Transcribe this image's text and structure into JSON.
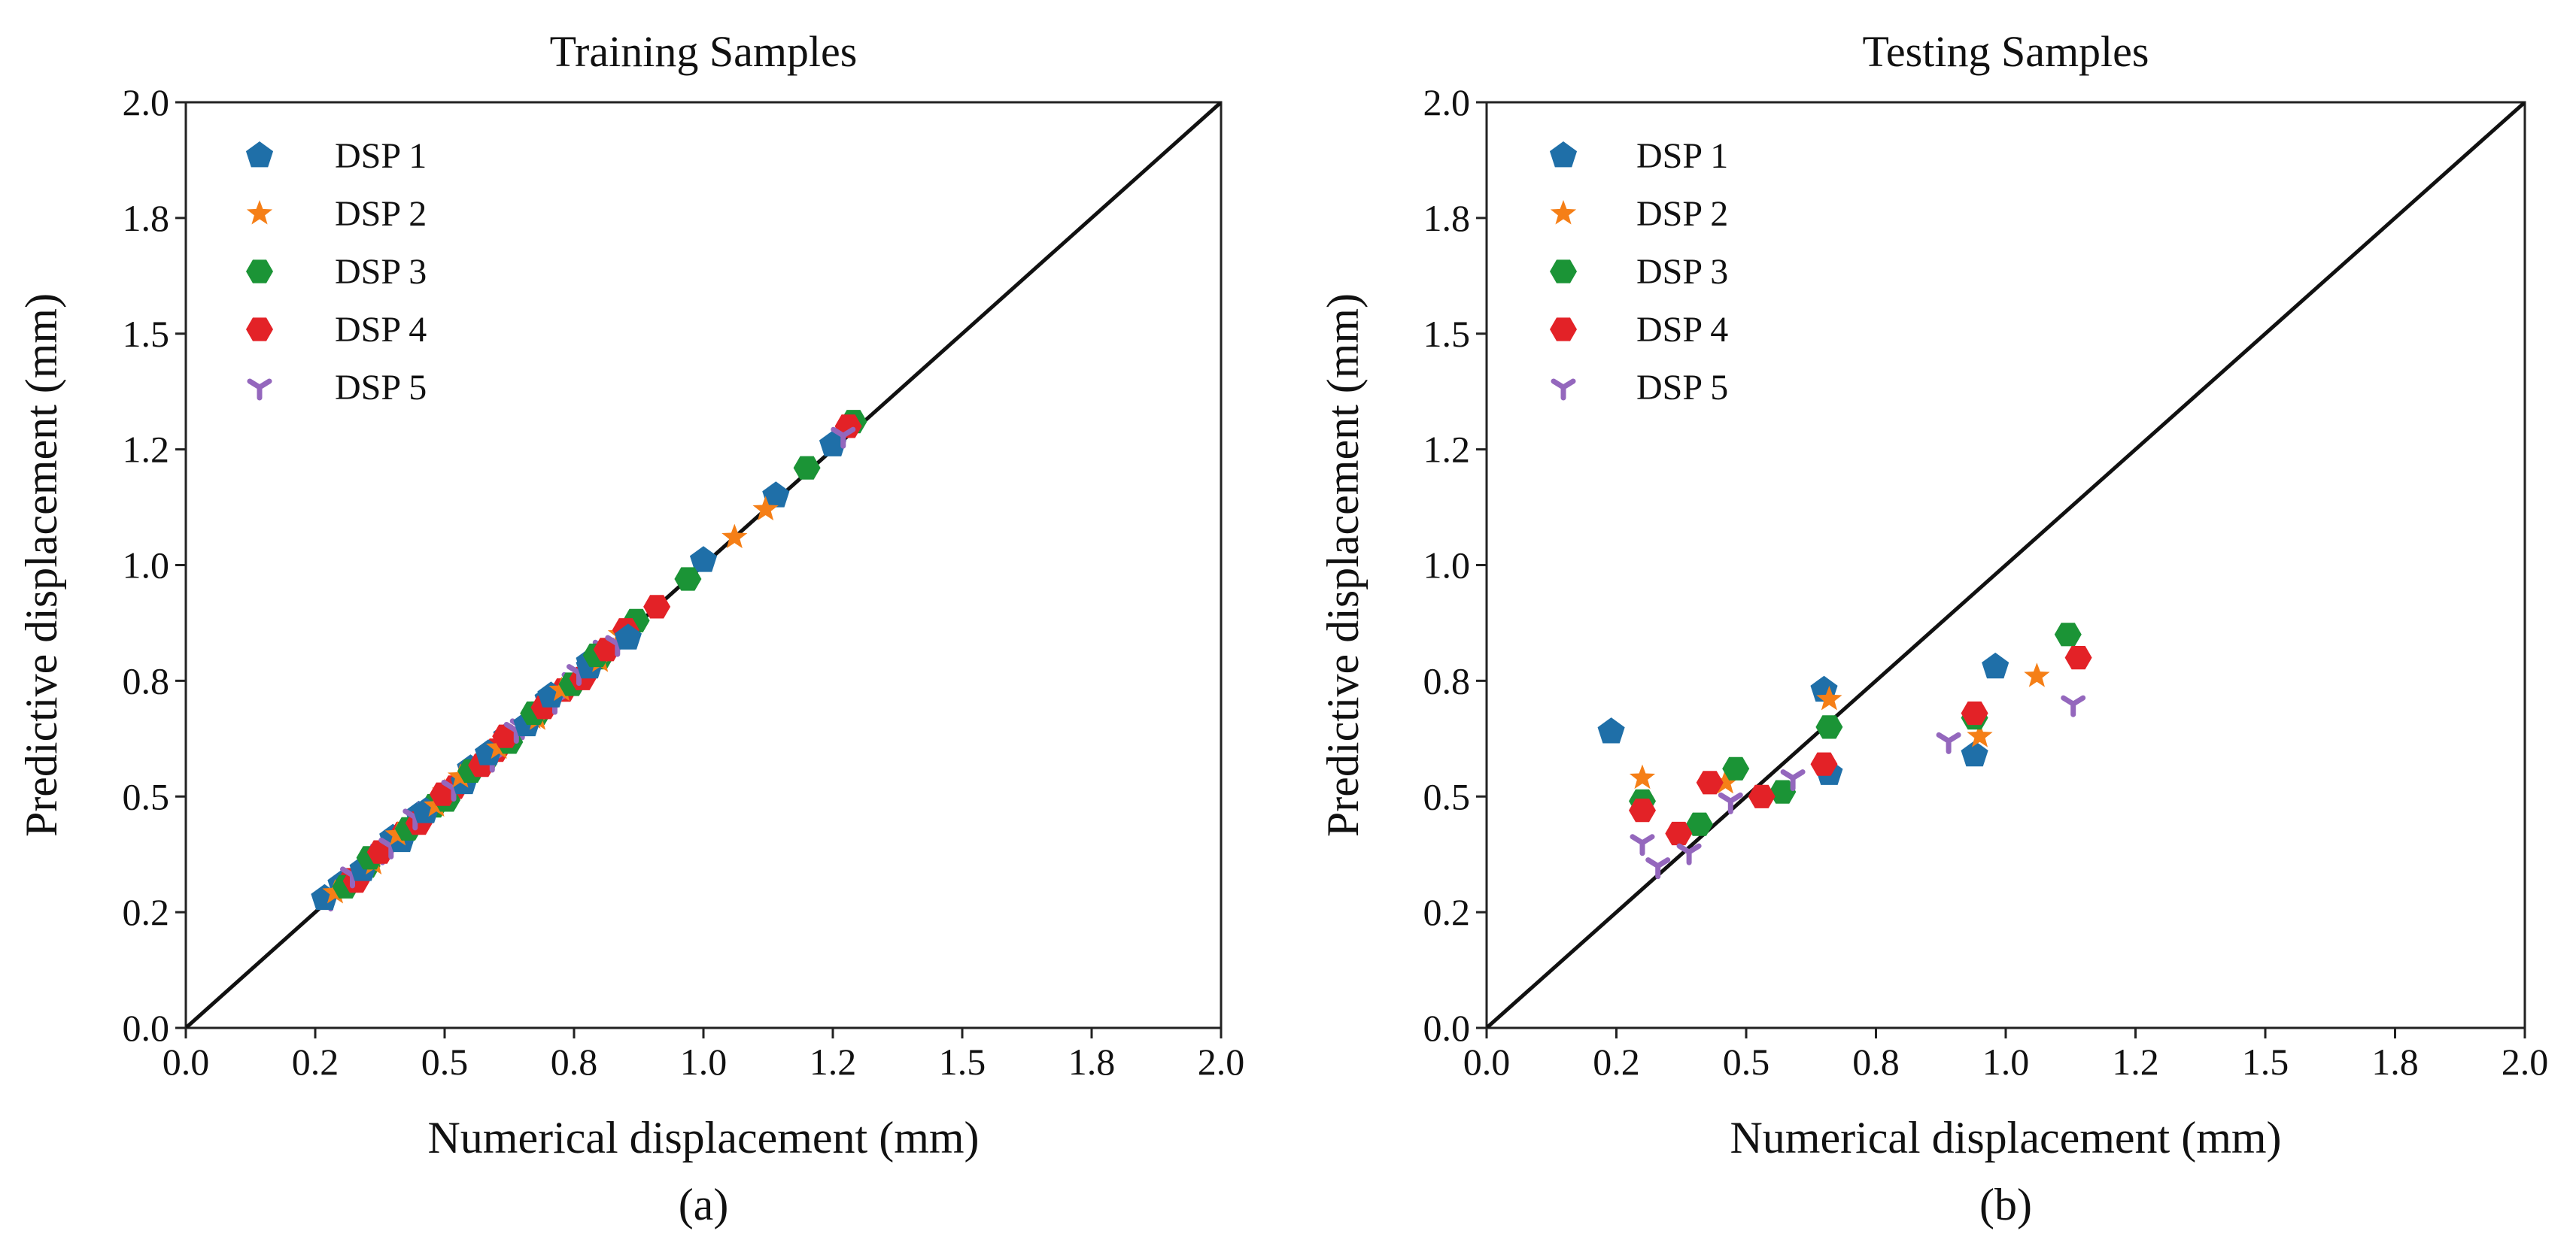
{
  "marker_colors": {
    "DSP 1": "#1f6fa8",
    "DSP 2": "#f57f17",
    "DSP 3": "#1b9436",
    "DSP 4": "#e32227",
    "DSP 5": "#9467bd"
  },
  "chart_data": [
    {
      "type": "scatter",
      "title": "Training Samples",
      "caption": "(a)",
      "xlabel": "Numerical displacement (mm)",
      "ylabel": "Predictive displacement (mm)",
      "xlim": [
        0.0,
        2.0
      ],
      "ylim": [
        0.0,
        2.0
      ],
      "xticks": [
        0.0,
        0.25,
        0.5,
        0.75,
        1.0,
        1.25,
        1.5,
        1.75,
        2.0
      ],
      "xtick_labels": [
        "0.0",
        "0.2",
        "0.5",
        "0.8",
        "1.0",
        "1.2",
        "1.5",
        "1.8",
        "2.0"
      ],
      "yticks": [
        0.0,
        0.25,
        0.5,
        0.75,
        1.0,
        1.25,
        1.5,
        1.75,
        2.0
      ],
      "ytick_labels": [
        "0.0",
        "0.2",
        "0.5",
        "0.8",
        "1.0",
        "1.2",
        "1.5",
        "1.8",
        "2.0"
      ],
      "legend_position": "top-left",
      "reference_line": {
        "x": [
          0.0,
          2.0
        ],
        "y": [
          0.0,
          2.0
        ]
      },
      "series": [
        {
          "name": "DSP 1",
          "marker": "pentagon",
          "x": [
            0.3,
            0.4,
            0.45,
            0.55,
            0.62,
            0.7,
            0.78,
            1.0,
            1.14,
            1.25
          ],
          "y": [
            0.31,
            0.41,
            0.46,
            0.56,
            0.63,
            0.71,
            0.79,
            1.01,
            1.15,
            1.26
          ]
        },
        {
          "name": "DSP 2",
          "marker": "star",
          "x": [
            0.33,
            0.5,
            0.67,
            0.84,
            1.06,
            1.12
          ],
          "y": [
            0.33,
            0.51,
            0.67,
            0.85,
            1.06,
            1.12
          ]
        },
        {
          "name": "DSP 3",
          "marker": "hexagon",
          "x": [
            0.35,
            0.48,
            0.58,
            0.68,
            0.8,
            0.87,
            0.97,
            1.2,
            1.29
          ],
          "y": [
            0.35,
            0.48,
            0.58,
            0.68,
            0.8,
            0.88,
            0.97,
            1.21,
            1.31
          ]
        },
        {
          "name": "DSP 4",
          "marker": "hexagon",
          "x": [
            0.32,
            0.42,
            0.52,
            0.6,
            0.73,
            0.85,
            0.91,
            1.28
          ],
          "y": [
            0.32,
            0.42,
            0.52,
            0.6,
            0.73,
            0.86,
            0.91,
            1.3
          ]
        },
        {
          "name": "DSP 5",
          "marker": "tri_down",
          "x": [
            0.28,
            0.38,
            0.47,
            0.56,
            0.65,
            0.75,
            0.81,
            1.27
          ],
          "y": [
            0.28,
            0.38,
            0.47,
            0.56,
            0.65,
            0.75,
            0.82,
            1.28
          ]
        }
      ]
    },
    {
      "type": "scatter",
      "title": "Testing Samples",
      "caption": "(b)",
      "xlabel": "Numerical displacement (mm)",
      "ylabel": "Predictive displacement (mm)",
      "xlim": [
        0.0,
        2.0
      ],
      "ylim": [
        0.0,
        2.0
      ],
      "xticks": [
        0.0,
        0.25,
        0.5,
        0.75,
        1.0,
        1.25,
        1.5,
        1.75,
        2.0
      ],
      "xtick_labels": [
        "0.0",
        "0.2",
        "0.5",
        "0.8",
        "1.0",
        "1.2",
        "1.5",
        "1.8",
        "2.0"
      ],
      "yticks": [
        0.0,
        0.25,
        0.5,
        0.75,
        1.0,
        1.25,
        1.5,
        1.75,
        2.0
      ],
      "ytick_labels": [
        "0.0",
        "0.2",
        "0.5",
        "0.8",
        "1.0",
        "1.2",
        "1.5",
        "1.8",
        "2.0"
      ],
      "legend_position": "top-left",
      "reference_line": {
        "x": [
          0.0,
          2.0
        ],
        "y": [
          0.0,
          2.0
        ]
      },
      "series": [
        {
          "name": "DSP 1",
          "marker": "pentagon",
          "x": [
            0.24,
            0.65,
            0.66,
            0.94,
            0.98
          ],
          "y": [
            0.64,
            0.73,
            0.55,
            0.59,
            0.78
          ]
        },
        {
          "name": "DSP 2",
          "marker": "star",
          "x": [
            0.3,
            0.46,
            0.66,
            0.95,
            1.06
          ],
          "y": [
            0.54,
            0.53,
            0.71,
            0.63,
            0.76
          ]
        },
        {
          "name": "DSP 3",
          "marker": "hexagon",
          "x": [
            0.3,
            0.41,
            0.48,
            0.57,
            0.66,
            0.94,
            1.12
          ],
          "y": [
            0.49,
            0.44,
            0.56,
            0.51,
            0.65,
            0.67,
            0.85
          ]
        },
        {
          "name": "DSP 4",
          "marker": "hexagon",
          "x": [
            0.3,
            0.37,
            0.43,
            0.53,
            0.65,
            0.94,
            1.14
          ],
          "y": [
            0.47,
            0.42,
            0.53,
            0.5,
            0.57,
            0.68,
            0.8
          ]
        },
        {
          "name": "DSP 5",
          "marker": "tri_down",
          "x": [
            0.3,
            0.33,
            0.39,
            0.47,
            0.59,
            0.89,
            1.13
          ],
          "y": [
            0.4,
            0.35,
            0.38,
            0.49,
            0.54,
            0.62,
            0.7
          ]
        }
      ]
    }
  ]
}
